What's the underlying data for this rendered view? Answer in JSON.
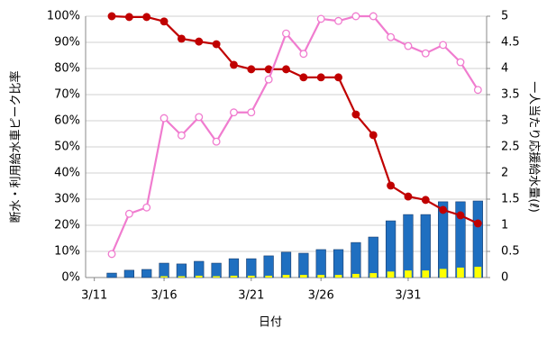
{
  "chart_data": {
    "type": "bar+line",
    "x_label": "日付",
    "y_label": "断水・利用給水車ピーク比率",
    "y2_label": "一人当たり応援給水量(ℓ)",
    "categories": [
      "3/11",
      null,
      null,
      null,
      "3/16",
      null,
      null,
      null,
      null,
      "3/21",
      null,
      null,
      null,
      "3/26",
      null,
      null,
      null,
      null,
      "3/31",
      null,
      null,
      null,
      null
    ],
    "ylim": [
      0,
      100
    ],
    "yticks": [
      {
        "value": 0,
        "label": "0%"
      },
      {
        "value": 10,
        "label": "10%"
      },
      {
        "value": 20,
        "label": "20%"
      },
      {
        "value": 30,
        "label": "30%"
      },
      {
        "value": 40,
        "label": "40%"
      },
      {
        "value": 50,
        "label": "50%"
      },
      {
        "value": 60,
        "label": "60%"
      },
      {
        "value": 70,
        "label": "70%"
      },
      {
        "value": 80,
        "label": "80%"
      },
      {
        "value": 90,
        "label": "90%"
      },
      {
        "value": 100,
        "label": "100%"
      }
    ],
    "y2lim": [
      0,
      5
    ],
    "y2ticks": [
      0,
      0.5,
      1,
      1.5,
      2,
      2.5,
      3,
      3.5,
      4,
      4.5,
      5
    ],
    "grid": true,
    "series": [
      {
        "type": "bar",
        "color": "#1f6fc0",
        "values": [
          null,
          1.7,
          2.8,
          3.1,
          5.5,
          5.2,
          6.2,
          5.5,
          7.2,
          7.2,
          8.3,
          9.7,
          9.3,
          10.7,
          10.7,
          13.4,
          15.5,
          21.7,
          24.1,
          24.1,
          29,
          29,
          29.3
        ]
      },
      {
        "type": "bar",
        "color": "#ffff00",
        "values": [
          null,
          0,
          0,
          0,
          0.5,
          0.5,
          0.7,
          0.5,
          0.7,
          0.7,
          0.7,
          1,
          1,
          1,
          1,
          1.4,
          1.7,
          2.3,
          2.7,
          2.7,
          3.3,
          3.8,
          4.1
        ]
      },
      {
        "type": "line",
        "color": "#c00000",
        "marker": "filled",
        "values": [
          null,
          100,
          99.7,
          99.7,
          98,
          91.4,
          90.3,
          89.3,
          81.4,
          79.7,
          79.7,
          79.7,
          76.6,
          76.6,
          76.6,
          62.4,
          54.5,
          35.2,
          31,
          29.7,
          25.9,
          23.8,
          20.7
        ]
      },
      {
        "type": "line",
        "color": "#f07ccf",
        "marker": "open",
        "axis": "y2",
        "values": [
          null,
          0.45,
          1.22,
          1.34,
          3.05,
          2.72,
          3.07,
          2.6,
          3.16,
          3.16,
          3.79,
          4.67,
          4.28,
          4.95,
          4.91,
          5,
          5,
          4.6,
          4.43,
          4.29,
          4.45,
          4.12,
          3.59
        ]
      }
    ]
  }
}
